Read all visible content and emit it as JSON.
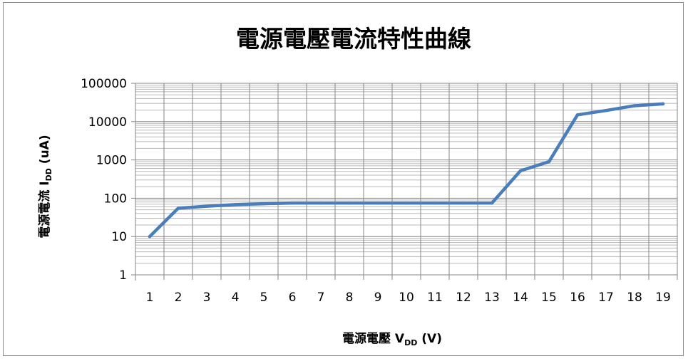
{
  "chart_data": {
    "type": "line",
    "title": "電源電壓電流特性曲線",
    "xlabel": {
      "main": "電源電壓 V",
      "sub": "DD",
      "suffix": " (V)"
    },
    "ylabel": {
      "main": "電源電流 I",
      "sub": "DD",
      "suffix": " (uA)"
    },
    "y_scale": "log",
    "ylim": [
      1,
      100000
    ],
    "y_tick_labels": [
      "1",
      "10",
      "100",
      "1000",
      "10000",
      "100000"
    ],
    "categories": [
      "1",
      "2",
      "3",
      "4",
      "5",
      "6",
      "7",
      "8",
      "9",
      "10",
      "11",
      "12",
      "13",
      "14",
      "15",
      "16",
      "17",
      "18",
      "19"
    ],
    "series": [
      {
        "color": "#4a7ebb",
        "values": [
          10,
          55,
          62,
          68,
          72,
          75,
          75,
          75,
          75,
          75,
          75,
          75,
          75,
          520,
          900,
          15000,
          19500,
          26000,
          29000
        ]
      }
    ],
    "grid": true,
    "legend": "none"
  }
}
